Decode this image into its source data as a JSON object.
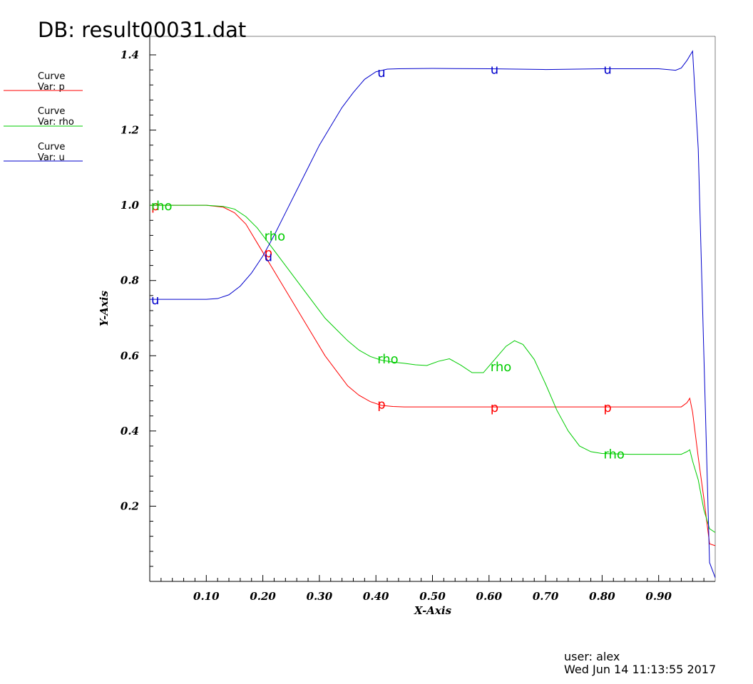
{
  "header": {
    "title": "DB: result00031.dat"
  },
  "legend": {
    "items": [
      {
        "line1": "Curve",
        "line2": "Var: p",
        "color": "#ff0000"
      },
      {
        "line1": "Curve",
        "line2": "Var: rho",
        "color": "#00cc00"
      },
      {
        "line1": "Curve",
        "line2": "Var: u",
        "color": "#0000cc"
      }
    ]
  },
  "footer": {
    "user": "user: alex",
    "timestamp": "Wed Jun 14 11:13:55 2017"
  },
  "chart_data": {
    "type": "line",
    "title": "DB: result00031.dat",
    "xlabel": "X-Axis",
    "ylabel": "Y-Axis",
    "xlim": [
      0.0,
      1.0
    ],
    "ylim": [
      0.0,
      1.4
    ],
    "grid": false,
    "legend_position": "top-left",
    "x_ticks": [
      {
        "value": 0.1,
        "label": "0.10"
      },
      {
        "value": 0.2,
        "label": "0.20"
      },
      {
        "value": 0.3,
        "label": "0.30"
      },
      {
        "value": 0.4,
        "label": "0.40"
      },
      {
        "value": 0.5,
        "label": "0.50"
      },
      {
        "value": 0.6,
        "label": "0.60"
      },
      {
        "value": 0.7,
        "label": "0.70"
      },
      {
        "value": 0.8,
        "label": "0.80"
      },
      {
        "value": 0.9,
        "label": "0.90"
      }
    ],
    "y_ticks": [
      {
        "value": 0.2,
        "label": "0.2"
      },
      {
        "value": 0.4,
        "label": "0.4"
      },
      {
        "value": 0.6,
        "label": "0.6"
      },
      {
        "value": 0.8,
        "label": "0.8"
      },
      {
        "value": 1.0,
        "label": "1.0"
      },
      {
        "value": 1.2,
        "label": "1.2"
      },
      {
        "value": 1.4,
        "label": "1.4"
      }
    ],
    "series": [
      {
        "name": "p",
        "color": "#ff0000",
        "label_x": [
          0.0,
          0.2,
          0.4,
          0.6,
          0.8
        ],
        "x": [
          0.0,
          0.05,
          0.1,
          0.13,
          0.15,
          0.17,
          0.19,
          0.21,
          0.23,
          0.25,
          0.27,
          0.29,
          0.31,
          0.33,
          0.35,
          0.37,
          0.39,
          0.41,
          0.43,
          0.45,
          0.5,
          0.6,
          0.7,
          0.8,
          0.9,
          0.94,
          0.95,
          0.955,
          0.96,
          0.97,
          0.98,
          0.99,
          1.0
        ],
        "y": [
          1.0,
          1.0,
          1.0,
          0.995,
          0.98,
          0.95,
          0.9,
          0.85,
          0.8,
          0.75,
          0.7,
          0.65,
          0.6,
          0.56,
          0.52,
          0.495,
          0.478,
          0.468,
          0.465,
          0.464,
          0.464,
          0.464,
          0.464,
          0.464,
          0.464,
          0.464,
          0.475,
          0.487,
          0.45,
          0.33,
          0.22,
          0.1,
          0.095
        ]
      },
      {
        "name": "rho",
        "color": "#00cc00",
        "label_x": [
          0.0,
          0.2,
          0.4,
          0.6,
          0.8
        ],
        "x": [
          0.0,
          0.05,
          0.1,
          0.13,
          0.15,
          0.17,
          0.19,
          0.21,
          0.23,
          0.25,
          0.27,
          0.29,
          0.31,
          0.33,
          0.35,
          0.37,
          0.39,
          0.41,
          0.43,
          0.45,
          0.47,
          0.49,
          0.51,
          0.53,
          0.55,
          0.57,
          0.59,
          0.61,
          0.63,
          0.645,
          0.66,
          0.68,
          0.7,
          0.72,
          0.74,
          0.76,
          0.78,
          0.8,
          0.85,
          0.9,
          0.94,
          0.95,
          0.955,
          0.96,
          0.97,
          0.98,
          0.99,
          1.0
        ],
        "y": [
          1.0,
          1.0,
          1.0,
          0.997,
          0.99,
          0.97,
          0.94,
          0.9,
          0.86,
          0.82,
          0.78,
          0.74,
          0.7,
          0.67,
          0.64,
          0.615,
          0.598,
          0.588,
          0.583,
          0.58,
          0.576,
          0.574,
          0.585,
          0.592,
          0.575,
          0.555,
          0.555,
          0.59,
          0.625,
          0.64,
          0.63,
          0.59,
          0.525,
          0.455,
          0.4,
          0.36,
          0.345,
          0.34,
          0.338,
          0.338,
          0.338,
          0.345,
          0.35,
          0.32,
          0.27,
          0.19,
          0.14,
          0.13
        ]
      },
      {
        "name": "u",
        "color": "#0000cc",
        "label_x": [
          0.0,
          0.2,
          0.4,
          0.6,
          0.8
        ],
        "x": [
          0.0,
          0.05,
          0.1,
          0.12,
          0.14,
          0.16,
          0.18,
          0.2,
          0.22,
          0.24,
          0.26,
          0.28,
          0.3,
          0.32,
          0.34,
          0.36,
          0.38,
          0.4,
          0.42,
          0.44,
          0.5,
          0.6,
          0.7,
          0.8,
          0.9,
          0.93,
          0.94,
          0.95,
          0.96,
          0.97,
          0.98,
          0.99,
          1.0
        ],
        "y": [
          0.75,
          0.75,
          0.75,
          0.752,
          0.762,
          0.785,
          0.82,
          0.865,
          0.92,
          0.98,
          1.04,
          1.1,
          1.16,
          1.21,
          1.26,
          1.3,
          1.335,
          1.355,
          1.362,
          1.363,
          1.364,
          1.363,
          1.361,
          1.363,
          1.363,
          1.359,
          1.365,
          1.385,
          1.41,
          1.15,
          0.6,
          0.05,
          0.01
        ]
      }
    ]
  }
}
